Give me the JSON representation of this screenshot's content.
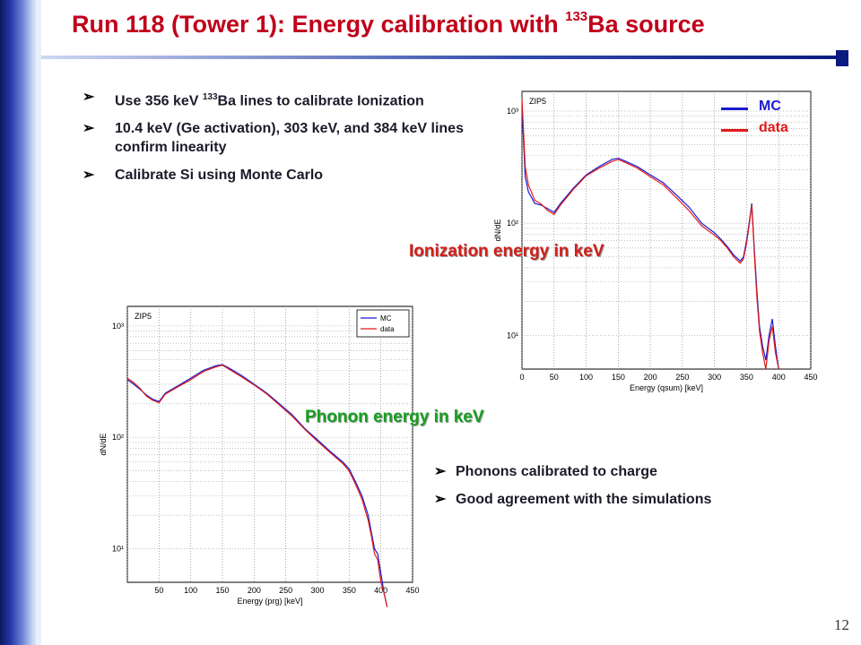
{
  "slide": {
    "title_main": "Run 118 (Tower 1): Energy calibration with ",
    "title_sup": "133",
    "title_end": "Ba source",
    "page_number": "12"
  },
  "bullets_top": [
    {
      "pre": "Use 356 keV ",
      "sup": "133",
      "post": "Ba lines to calibrate Ionization"
    },
    {
      "pre": "10.4 keV (Ge activation), 303 keV, and 384 keV lines confirm linearity",
      "sup": "",
      "post": ""
    },
    {
      "pre": "Calibrate Si using Monte Carlo",
      "sup": "",
      "post": ""
    }
  ],
  "bullets_bottom": [
    "Phonons calibrated to charge",
    "Good agreement with the simulations"
  ],
  "callouts": {
    "ionization": "Ionization energy in keV",
    "phonon": "Phonon energy in keV"
  },
  "legend_overlay": {
    "mc": "MC",
    "data": "data"
  },
  "colors": {
    "title": "#c0001a",
    "mc": "#1a1ad0",
    "data": "#e01a1a",
    "ionization_callout": "#d0201a",
    "phonon_callout": "#16a020"
  },
  "chart_data": [
    {
      "type": "line",
      "panel_label": "ZIP5",
      "xlabel": "Energy (qsum) [keV]",
      "ylabel": "dN/dE",
      "log_y": true,
      "xlim": [
        0,
        450
      ],
      "x_ticks": [
        "0",
        "50",
        "100",
        "150",
        "200",
        "250",
        "300",
        "350",
        "400",
        "450"
      ],
      "y_ticks": [
        "10¹",
        "10²",
        "10³"
      ],
      "grid": true,
      "series": [
        {
          "name": "MC",
          "x": [
            0,
            5,
            10,
            20,
            30,
            40,
            50,
            60,
            80,
            100,
            120,
            140,
            150,
            160,
            180,
            200,
            220,
            240,
            260,
            280,
            300,
            310,
            320,
            330,
            340,
            345,
            350,
            355,
            358,
            362,
            366,
            370,
            375,
            380,
            385,
            390,
            395,
            400
          ],
          "values": [
            1100,
            260,
            190,
            150,
            145,
            135,
            125,
            150,
            205,
            270,
            320,
            370,
            380,
            360,
            320,
            270,
            230,
            180,
            140,
            100,
            82,
            72,
            62,
            52,
            46,
            50,
            70,
            110,
            150,
            60,
            25,
            12,
            8,
            6,
            10,
            14,
            8,
            5
          ]
        },
        {
          "name": "data",
          "x": [
            0,
            5,
            10,
            20,
            30,
            40,
            50,
            60,
            80,
            100,
            120,
            140,
            150,
            160,
            180,
            200,
            220,
            240,
            260,
            280,
            300,
            310,
            320,
            330,
            340,
            345,
            350,
            355,
            358,
            362,
            366,
            370,
            375,
            380,
            385,
            390,
            395,
            400
          ],
          "values": [
            1300,
            320,
            220,
            160,
            148,
            130,
            120,
            145,
            200,
            265,
            310,
            355,
            370,
            350,
            310,
            260,
            220,
            170,
            130,
            95,
            78,
            70,
            60,
            50,
            44,
            48,
            66,
            105,
            145,
            55,
            22,
            11,
            7,
            5,
            9,
            12,
            7,
            5
          ]
        }
      ]
    },
    {
      "type": "line",
      "panel_label": "ZIP5",
      "xlabel": "Energy (prg) [keV]",
      "ylabel": "dN/dE",
      "log_y": true,
      "xlim": [
        0,
        450
      ],
      "x_ticks": [
        "50",
        "100",
        "150",
        "200",
        "250",
        "300",
        "350",
        "400",
        "450"
      ],
      "y_ticks": [
        "10¹",
        "10²",
        "10³"
      ],
      "legend": [
        "MC",
        "data"
      ],
      "legend_position": "top-right",
      "grid": true,
      "series": [
        {
          "name": "MC",
          "x": [
            0,
            10,
            20,
            30,
            40,
            50,
            60,
            80,
            100,
            120,
            140,
            150,
            160,
            180,
            200,
            220,
            240,
            260,
            280,
            300,
            320,
            340,
            350,
            360,
            370,
            380,
            385,
            390,
            395,
            400,
            405,
            410
          ],
          "values": [
            330,
            300,
            270,
            240,
            220,
            210,
            250,
            290,
            340,
            400,
            440,
            450,
            420,
            360,
            300,
            250,
            200,
            160,
            120,
            95,
            75,
            60,
            52,
            40,
            30,
            20,
            14,
            10,
            9,
            6,
            4,
            3
          ]
        },
        {
          "name": "data",
          "x": [
            0,
            10,
            20,
            30,
            40,
            50,
            60,
            80,
            100,
            120,
            140,
            150,
            160,
            180,
            200,
            220,
            240,
            260,
            280,
            300,
            320,
            340,
            350,
            360,
            370,
            380,
            385,
            390,
            395,
            400,
            405,
            410
          ],
          "values": [
            340,
            310,
            275,
            235,
            215,
            205,
            245,
            285,
            330,
            390,
            430,
            445,
            410,
            350,
            295,
            245,
            195,
            155,
            118,
            92,
            73,
            58,
            50,
            38,
            28,
            18,
            13,
            9,
            8,
            5,
            4,
            3
          ]
        }
      ]
    }
  ]
}
